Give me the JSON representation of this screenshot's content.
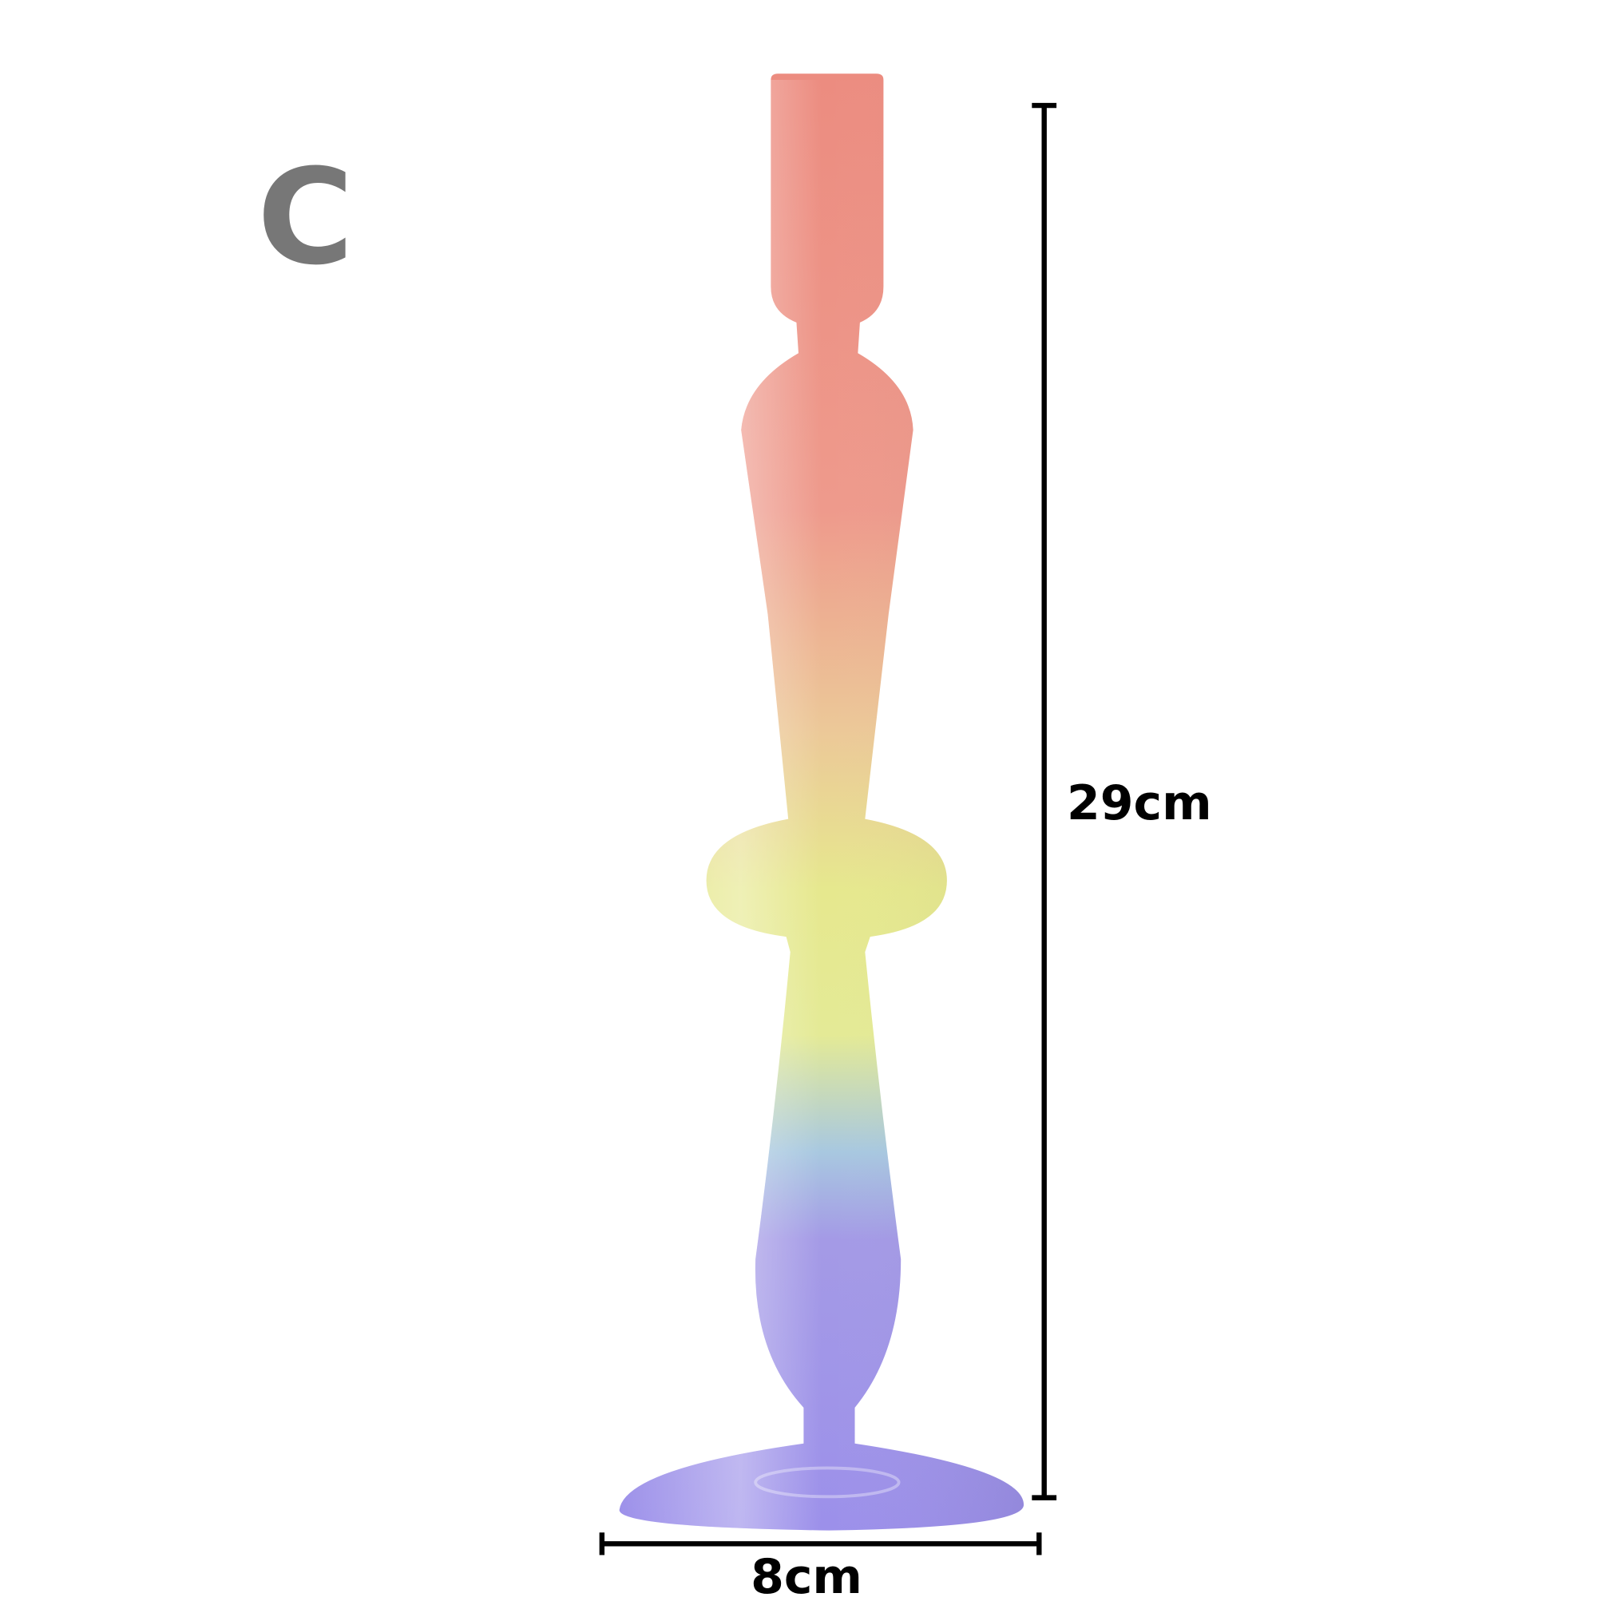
{
  "variant_label": "C",
  "dimensions": {
    "height": "29cm",
    "width": "8cm"
  },
  "colors": {
    "top": "#ea8a7c",
    "middle": "#e8ea90",
    "bottom": "#9a8ee8",
    "dimension_lines": "#000000",
    "variant_label": "#777777"
  }
}
